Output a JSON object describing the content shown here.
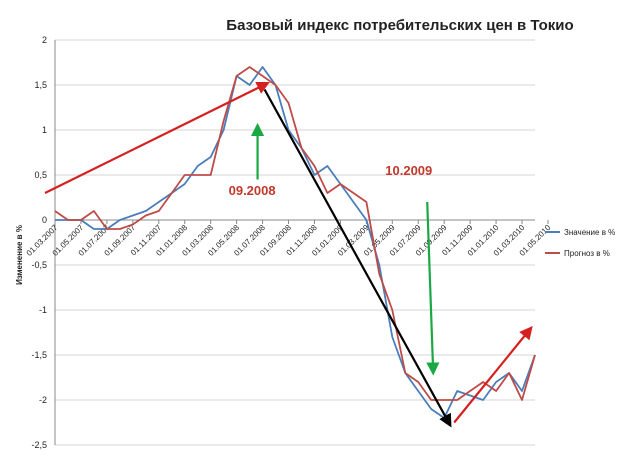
{
  "chart_data": {
    "type": "line",
    "title": "Базовый индекс потребительских цен в Токио",
    "ylabel": "Изменение в %",
    "xlabel": "",
    "ylim": [
      -2.5,
      2
    ],
    "yticks": [
      2,
      1.5,
      1,
      0.5,
      0,
      -0.5,
      -1,
      -1.5,
      -2,
      -2.5
    ],
    "ytick_labels": [
      "2",
      "1,5",
      "1",
      "0,5",
      "0",
      "-0,5",
      "-1",
      "-1,5",
      "-2",
      "-2,5"
    ],
    "x_tick_labels": [
      "01.03.2007",
      "01.05.2007",
      "01.07.2007",
      "01.09.2007",
      "01.11.2007",
      "01.01.2008",
      "01.03.2008",
      "01.05.2008",
      "01.07.2008",
      "01.09.2008",
      "01.11.2008",
      "01.01.2009",
      "01.03.2009",
      "01.05.2009",
      "01.07.2009",
      "01.09.2009",
      "01.11.2009",
      "01.01.2010",
      "01.03.2010",
      "01.05.2010"
    ],
    "grid": "horizontal",
    "legend_position": "right",
    "series": [
      {
        "name": "Значение в %",
        "color": "#4a7ebb",
        "values": [
          0,
          0,
          0,
          -0.1,
          -0.1,
          0,
          0.05,
          0.1,
          0.2,
          0.3,
          0.4,
          0.6,
          0.7,
          1.0,
          1.6,
          1.5,
          1.7,
          1.5,
          1.0,
          0.8,
          0.5,
          0.6,
          0.4,
          0.2,
          0.0,
          -0.5,
          -1.3,
          -1.7,
          -1.9,
          -2.1,
          -2.2,
          -1.9,
          -1.95,
          -2.0,
          -1.8,
          -1.7,
          -1.9,
          -1.5
        ]
      },
      {
        "name": "Прогноз в %",
        "color": "#be4b48",
        "values": [
          0.1,
          0,
          0,
          0.1,
          -0.1,
          -0.1,
          -0.05,
          0.05,
          0.1,
          0.3,
          0.5,
          0.5,
          0.5,
          1.1,
          1.6,
          1.7,
          1.6,
          1.5,
          1.3,
          0.8,
          0.6,
          0.3,
          0.4,
          0.3,
          0.2,
          -0.6,
          -1.0,
          -1.7,
          -1.8,
          -2.0,
          -2.0,
          -2.0,
          -1.9,
          -1.8,
          -1.9,
          -1.7,
          -2.0,
          -1.5
        ]
      }
    ],
    "annotations": [
      {
        "text": "09.2008",
        "color": "#c0392b"
      },
      {
        "text": "10.2009",
        "color": "#c0392b"
      }
    ],
    "arrow_colors": {
      "trend_up": "#d62020",
      "fall": "#000000",
      "marker": "#1aa845"
    }
  }
}
